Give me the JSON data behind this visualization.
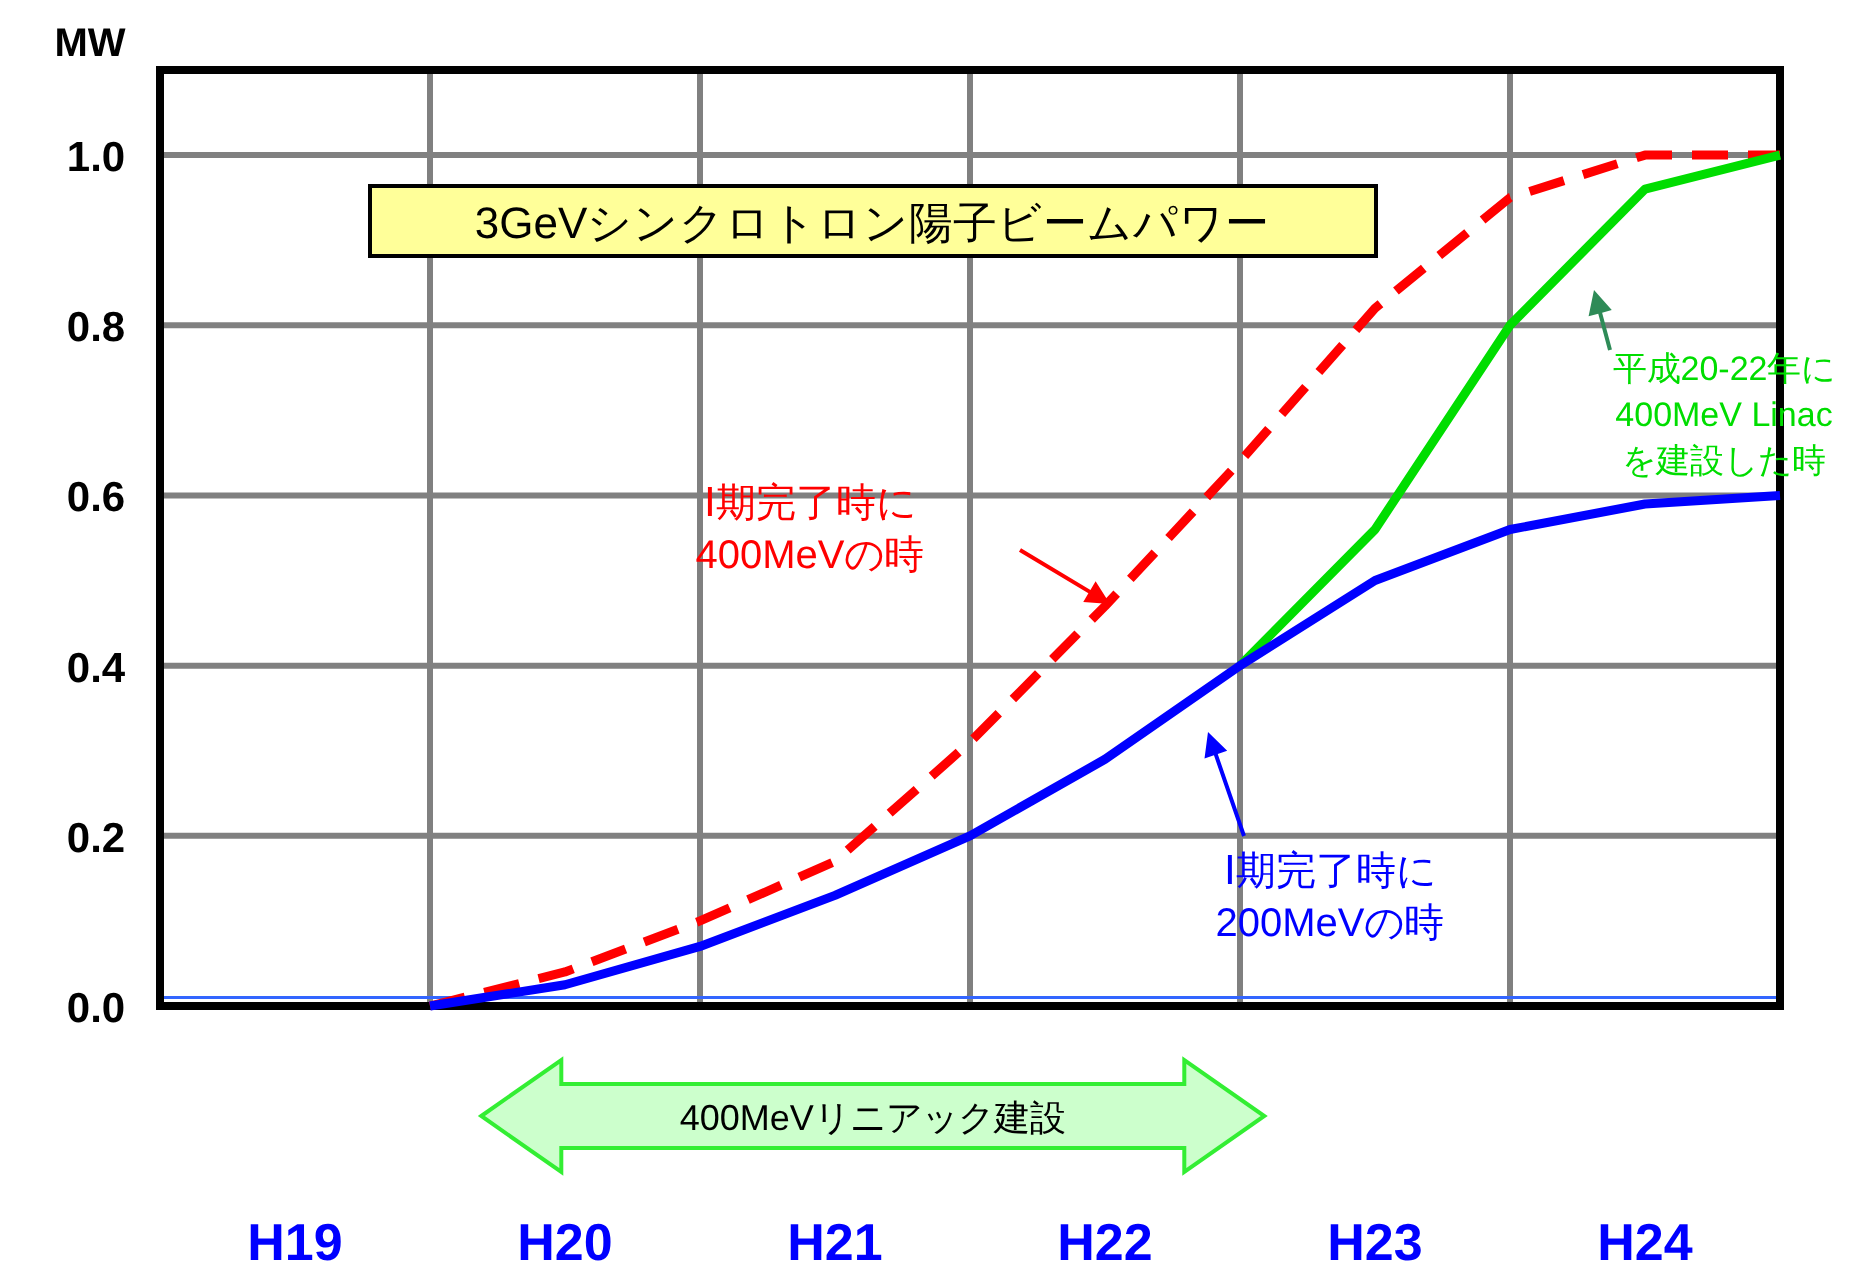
{
  "chart_data": {
    "type": "line",
    "title": "3GeVシンクロトロン陽子ビームパワー",
    "ylabel": "MW",
    "categories": [
      null,
      "H19",
      null,
      "H20",
      null,
      "H21",
      null,
      "H22",
      null,
      "H23",
      null,
      "H24",
      null
    ],
    "ylim": [
      0,
      1.1
    ],
    "yticks": [
      {
        "value": 0,
        "label": "0.0"
      },
      {
        "value": 0.2,
        "label": "0.2"
      },
      {
        "value": 0.4,
        "label": "0.4"
      },
      {
        "value": 0.6,
        "label": "0.6"
      },
      {
        "value": 0.8,
        "label": "0.8"
      },
      {
        "value": 1,
        "label": "1.0"
      }
    ],
    "grid": true,
    "legend": false,
    "marker": "none",
    "ref_lines": [
      {
        "axis": "y",
        "value": 0.01,
        "color": "#3366ff"
      }
    ],
    "annotations": [
      "400MeVリニアック建設"
    ],
    "series": [
      {
        "name": "Ⅰ期完了時に\n400MeVの時",
        "color": "#ff0000",
        "line_style": "dashed",
        "values": [
          null,
          null,
          0,
          0.04,
          0.1,
          0.17,
          0.31,
          0.47,
          0.64,
          0.82,
          0.95,
          1.0,
          1.0
        ]
      },
      {
        "name": "平成20-22年に\n400MeV Linac\nを建設した時",
        "color": "#00dd00",
        "line_style": "solid",
        "values": [
          null,
          null,
          null,
          null,
          null,
          null,
          null,
          null,
          0.4,
          0.56,
          0.8,
          0.96,
          1.0
        ]
      },
      {
        "name": "Ⅰ期完了時に\n200MeVの時",
        "color": "#0000ff",
        "line_style": "solid",
        "values": [
          null,
          null,
          0,
          0.025,
          0.07,
          0.13,
          0.2,
          0.29,
          0.4,
          0.5,
          0.56,
          0.59,
          0.6
        ]
      }
    ]
  }
}
